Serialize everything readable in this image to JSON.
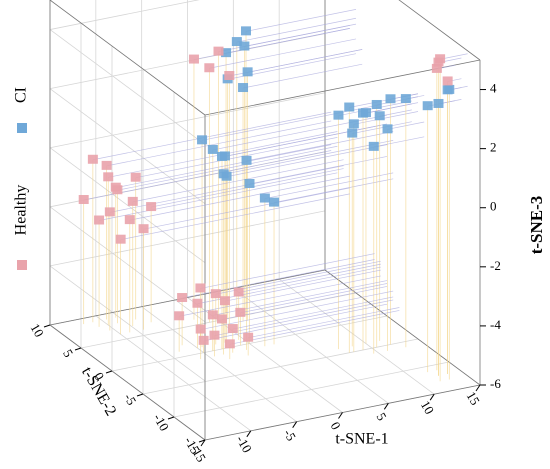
{
  "chart_data": {
    "type": "scatter3d",
    "xlabel": "t-SNE-1",
    "ylabel": "t-SNE-2",
    "zlabel": "t-SNE-3",
    "xlim": [
      -15,
      15
    ],
    "xticks": [
      -15,
      -10,
      -5,
      0,
      5,
      10,
      15
    ],
    "ylim": [
      -15,
      10
    ],
    "yticks": [
      -15,
      -10,
      -5,
      0,
      5,
      10
    ],
    "zlim": [
      -6,
      5
    ],
    "zticks": [
      -6,
      -4,
      -2,
      0,
      2,
      4
    ],
    "grid": true,
    "legend": "left",
    "series": [
      {
        "name": "CI",
        "color": "#6fa8d8",
        "x": [
          2,
          3,
          1.5,
          2.5,
          3.5,
          1,
          2,
          -4,
          -3,
          -2,
          -3.5,
          -2.5,
          -1,
          -4.5,
          0,
          1,
          2,
          8,
          9,
          10,
          11,
          8.5,
          10.5,
          12,
          9.5,
          7,
          11.5,
          13,
          7.5,
          12.5,
          13.5,
          12,
          13
        ],
        "y": [
          5,
          5,
          6,
          4,
          6,
          5,
          4,
          0,
          0,
          1,
          -1,
          0,
          -1,
          1,
          0,
          -1,
          -1,
          -5,
          -5,
          -4,
          -6,
          -4,
          -5,
          -5,
          -6,
          -4,
          -4,
          -6,
          -5,
          -12,
          -12,
          -11,
          -13
        ],
        "z": [
          3.3,
          3.6,
          2.8,
          2.4,
          2.9,
          2.1,
          1.9,
          0.8,
          0.5,
          0.3,
          0.1,
          -0.2,
          0.4,
          1.0,
          -0.6,
          -1.0,
          -1.2,
          1.7,
          2.0,
          1.8,
          1.5,
          1.2,
          2.2,
          2.3,
          1.0,
          1.9,
          1.6,
          2.4,
          2.3,
          3.2,
          3.6,
          3.0,
          3.8
        ]
      },
      {
        "name": "Healthy",
        "color": "#e9a3ab",
        "x": [
          -11,
          -10,
          -9,
          -10.5,
          -9.5,
          -8,
          -11,
          -9,
          -7,
          -8.5,
          -10,
          -7.5,
          -6,
          -12,
          -5,
          -4,
          -3,
          -4.5,
          -2,
          -6,
          -3.5,
          -1,
          -5,
          -2.5,
          -4,
          -6,
          -1.5,
          -3,
          -7,
          -0.5,
          -1,
          0,
          -2,
          0.5,
          12.5,
          13,
          12,
          13.5
        ],
        "y": [
          9,
          8,
          8,
          7,
          9,
          7,
          8,
          6,
          8,
          9,
          6,
          6,
          7,
          9,
          1,
          0,
          0,
          -1,
          1,
          2,
          -2,
          0,
          0,
          -1,
          2,
          -1,
          -2,
          1,
          1,
          1,
          5,
          5,
          6,
          4,
          -12,
          -11,
          -13,
          -12
        ],
        "z": [
          -0.5,
          -1,
          -1.5,
          -2,
          -0.8,
          -1.8,
          -2.4,
          -2.2,
          -1.2,
          -1.6,
          -2.8,
          -2.6,
          -2.1,
          -1.8,
          -4.5,
          -4.8,
          -5,
          -5.3,
          -4.6,
          -4.4,
          -5.5,
          -4.9,
          -5.6,
          -5.2,
          -4.2,
          -5.0,
          -5.4,
          -4.3,
          -4.8,
          -4.4,
          2.6,
          3.1,
          2.8,
          2.4,
          4.6,
          4.2,
          4.9,
          3.9
        ]
      }
    ]
  }
}
